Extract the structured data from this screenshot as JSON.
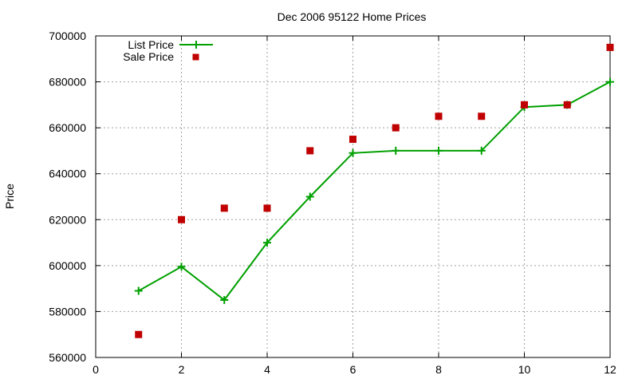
{
  "chart_data": {
    "type": "line",
    "title": "Dec 2006 95122 Home Prices",
    "xlabel": "",
    "ylabel": "Price",
    "xlim": [
      0,
      12
    ],
    "ylim": [
      560000,
      700000
    ],
    "x_ticks": [
      0,
      2,
      4,
      6,
      8,
      10,
      12
    ],
    "y_ticks": [
      560000,
      580000,
      600000,
      620000,
      640000,
      660000,
      680000,
      700000
    ],
    "grid": true,
    "legend_position": "top-left",
    "series": [
      {
        "name": "List Price",
        "style": "linespoints",
        "marker": "plus",
        "color": "#00a000",
        "x": [
          1,
          2,
          3,
          4,
          5,
          6,
          7,
          8,
          9,
          10,
          11,
          12
        ],
        "y": [
          589000,
          599500,
          585000,
          610000,
          630000,
          649000,
          650000,
          650000,
          650000,
          669000,
          670000,
          680000
        ]
      },
      {
        "name": "Sale Price",
        "style": "points",
        "marker": "square",
        "color": "#c00000",
        "x": [
          1,
          2,
          3,
          4,
          5,
          6,
          7,
          8,
          9,
          10,
          11,
          12
        ],
        "y": [
          570000,
          620000,
          625000,
          625000,
          650000,
          655000,
          660000,
          665000,
          665000,
          670000,
          670000,
          695000
        ]
      }
    ]
  }
}
